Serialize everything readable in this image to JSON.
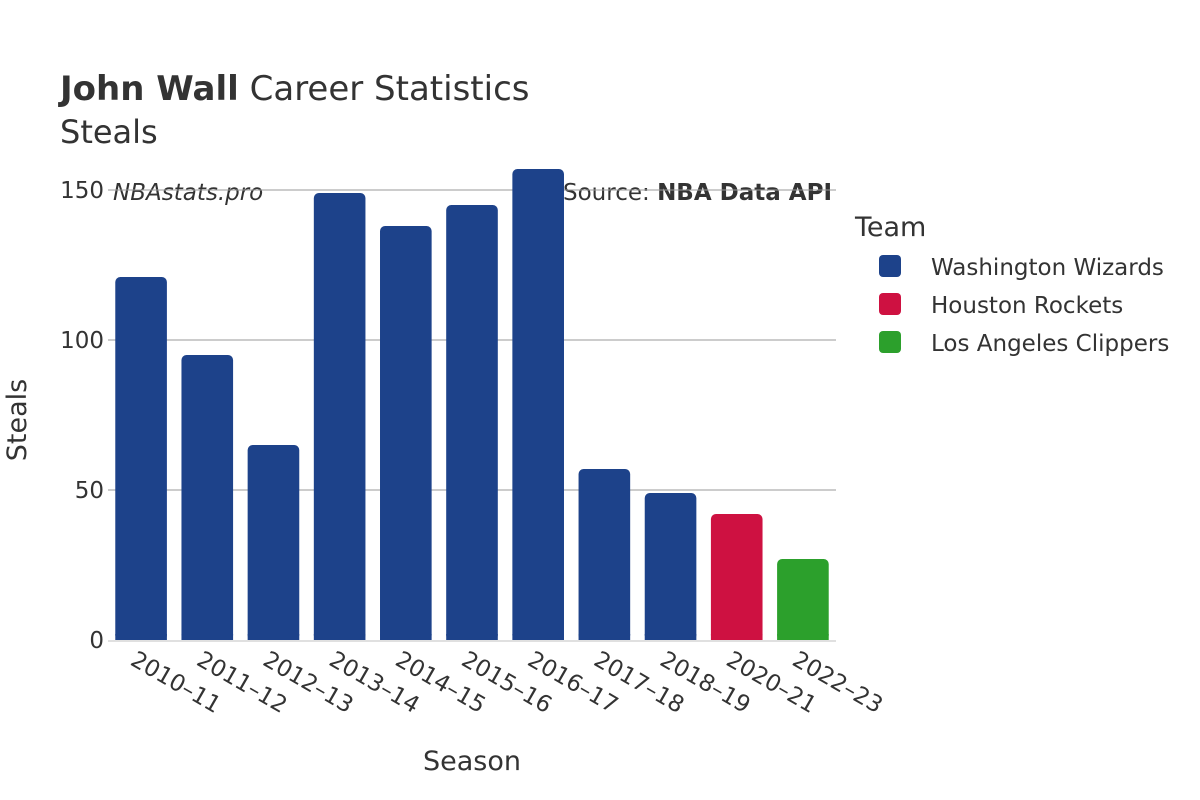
{
  "header": {
    "title_bold": "John Wall",
    "title_rest": " Career Statistics",
    "subtitle": "Steals",
    "watermark": "NBAstats.pro",
    "source_prefix": "Source: ",
    "source_bold": "NBA Data API"
  },
  "colors": {
    "washington": "#1d428a",
    "houston": "#ce1141",
    "clippers": "#2ca02c",
    "grid": "#999999",
    "text": "#333333"
  },
  "chart_data": {
    "type": "bar",
    "xlabel": "Season",
    "ylabel": "Steals",
    "ylim": [
      0,
      160
    ],
    "yticks": [
      0,
      50,
      100,
      150
    ],
    "grid": true,
    "legend_title": "Team",
    "legend_position": "right",
    "categories": [
      "2010–11",
      "2011–12",
      "2012–13",
      "2013–14",
      "2014–15",
      "2015–16",
      "2016–17",
      "2017–18",
      "2018–19",
      "2020–21",
      "2022–23"
    ],
    "values": [
      121,
      95,
      65,
      149,
      138,
      145,
      157,
      57,
      49,
      42,
      27
    ],
    "teams": [
      "Washington Wizards",
      "Washington Wizards",
      "Washington Wizards",
      "Washington Wizards",
      "Washington Wizards",
      "Washington Wizards",
      "Washington Wizards",
      "Washington Wizards",
      "Washington Wizards",
      "Houston Rockets",
      "Los Angeles Clippers"
    ],
    "series": [
      {
        "name": "Washington Wizards",
        "color": "#1d428a"
      },
      {
        "name": "Houston Rockets",
        "color": "#ce1141"
      },
      {
        "name": "Los Angeles Clippers",
        "color": "#2ca02c"
      }
    ]
  }
}
